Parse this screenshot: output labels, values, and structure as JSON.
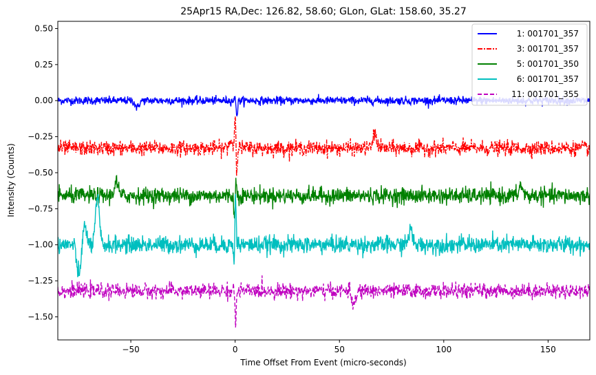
{
  "chart_data": {
    "type": "line",
    "title": "25Apr15 RA,Dec:  126.82,  58.60; GLon, GLat:  158.60,  35.27",
    "xlabel": "Time Offset From Event (micro-seconds)",
    "ylabel": "Intensity (Counts)",
    "xlim": [
      -85,
      170
    ],
    "ylim": [
      -1.66,
      0.55
    ],
    "xticks": [
      -50,
      0,
      50,
      100,
      150
    ],
    "xtick_labels": [
      "−50",
      "0",
      "50",
      "100",
      "150"
    ],
    "yticks": [
      0.5,
      0.25,
      0.0,
      -0.25,
      -0.5,
      -0.75,
      -1.0,
      -1.25,
      -1.5
    ],
    "ytick_labels": [
      "0.50",
      "0.25",
      "0.00",
      "−0.25",
      "−0.50",
      "−0.75",
      "−1.00",
      "−1.25",
      "−1.50"
    ],
    "legend_position": "top-right",
    "series": [
      {
        "name": "1: 001701_357",
        "color": "#0000ff",
        "dash": "solid",
        "offset": 0.0,
        "noise": 0.014,
        "features": [
          {
            "x": 0.3,
            "amp": 0.04
          },
          {
            "x": 0.8,
            "amp": -0.12
          },
          {
            "x": -47,
            "amp": -0.05
          }
        ]
      },
      {
        "name": "3: 001701_357",
        "color": "#ff0000",
        "dash": "dashdot",
        "offset": -0.33,
        "noise": 0.025,
        "features": [
          {
            "x": 0.2,
            "amp": 0.33
          },
          {
            "x": 0.6,
            "amp": -0.25
          },
          {
            "x": 67,
            "amp": 0.1
          },
          {
            "x": -2,
            "amp": 0.05
          }
        ]
      },
      {
        "name": "5: 001701_350",
        "color": "#008000",
        "dash": "solid",
        "offset": -0.66,
        "noise": 0.028,
        "features": [
          {
            "x": 0.3,
            "amp": 0.15
          },
          {
            "x": -0.2,
            "amp": -0.2
          },
          {
            "x": -57,
            "amp": 0.1
          },
          {
            "x": 137,
            "amp": 0.07
          }
        ]
      },
      {
        "name": "6: 001701_357",
        "color": "#00bfbf",
        "dash": "solid",
        "offset": -1.0,
        "noise": 0.03,
        "features": [
          {
            "x": -66,
            "amp": 0.32
          },
          {
            "x": -75,
            "amp": -0.22
          },
          {
            "x": -72,
            "amp": 0.12
          },
          {
            "x": 0.1,
            "amp": 0.45
          },
          {
            "x": -0.3,
            "amp": -0.25
          },
          {
            "x": 84,
            "amp": 0.1
          }
        ]
      },
      {
        "name": "11: 001701_355",
        "color": "#bf00bf",
        "dash": "dashed",
        "offset": -1.32,
        "noise": 0.025,
        "features": [
          {
            "x": 0.2,
            "amp": -0.25
          },
          {
            "x": -0.4,
            "amp": 0.06
          },
          {
            "x": 57,
            "amp": -0.1
          }
        ]
      }
    ]
  }
}
